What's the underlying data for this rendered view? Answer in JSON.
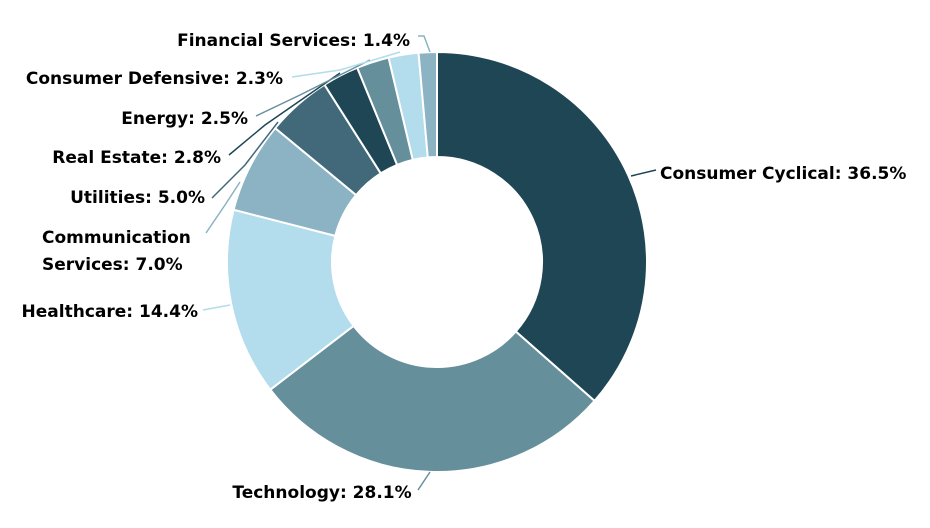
{
  "chart_data": {
    "type": "pie",
    "donut": true,
    "unit": "%",
    "title": "",
    "legend": "none",
    "slices": [
      {
        "label": "Consumer Cyclical",
        "value": 36.5,
        "color": "#1f4655"
      },
      {
        "label": "Technology",
        "value": 28.1,
        "color": "#668f9c"
      },
      {
        "label": "Healthcare",
        "value": 14.4,
        "color": "#b3dcec"
      },
      {
        "label": "Communication Services",
        "value": 7.0,
        "color": "#8bb3c4"
      },
      {
        "label": "Utilities",
        "value": 5.0,
        "color": "#426979"
      },
      {
        "label": "Real Estate",
        "value": 2.8,
        "color": "#1f4655"
      },
      {
        "label": "Energy",
        "value": 2.5,
        "color": "#668f9c"
      },
      {
        "label": "Consumer Defensive",
        "value": 2.3,
        "color": "#b3dcec"
      },
      {
        "label": "Financial Services",
        "value": 1.4,
        "color": "#8bb3c4"
      }
    ]
  }
}
